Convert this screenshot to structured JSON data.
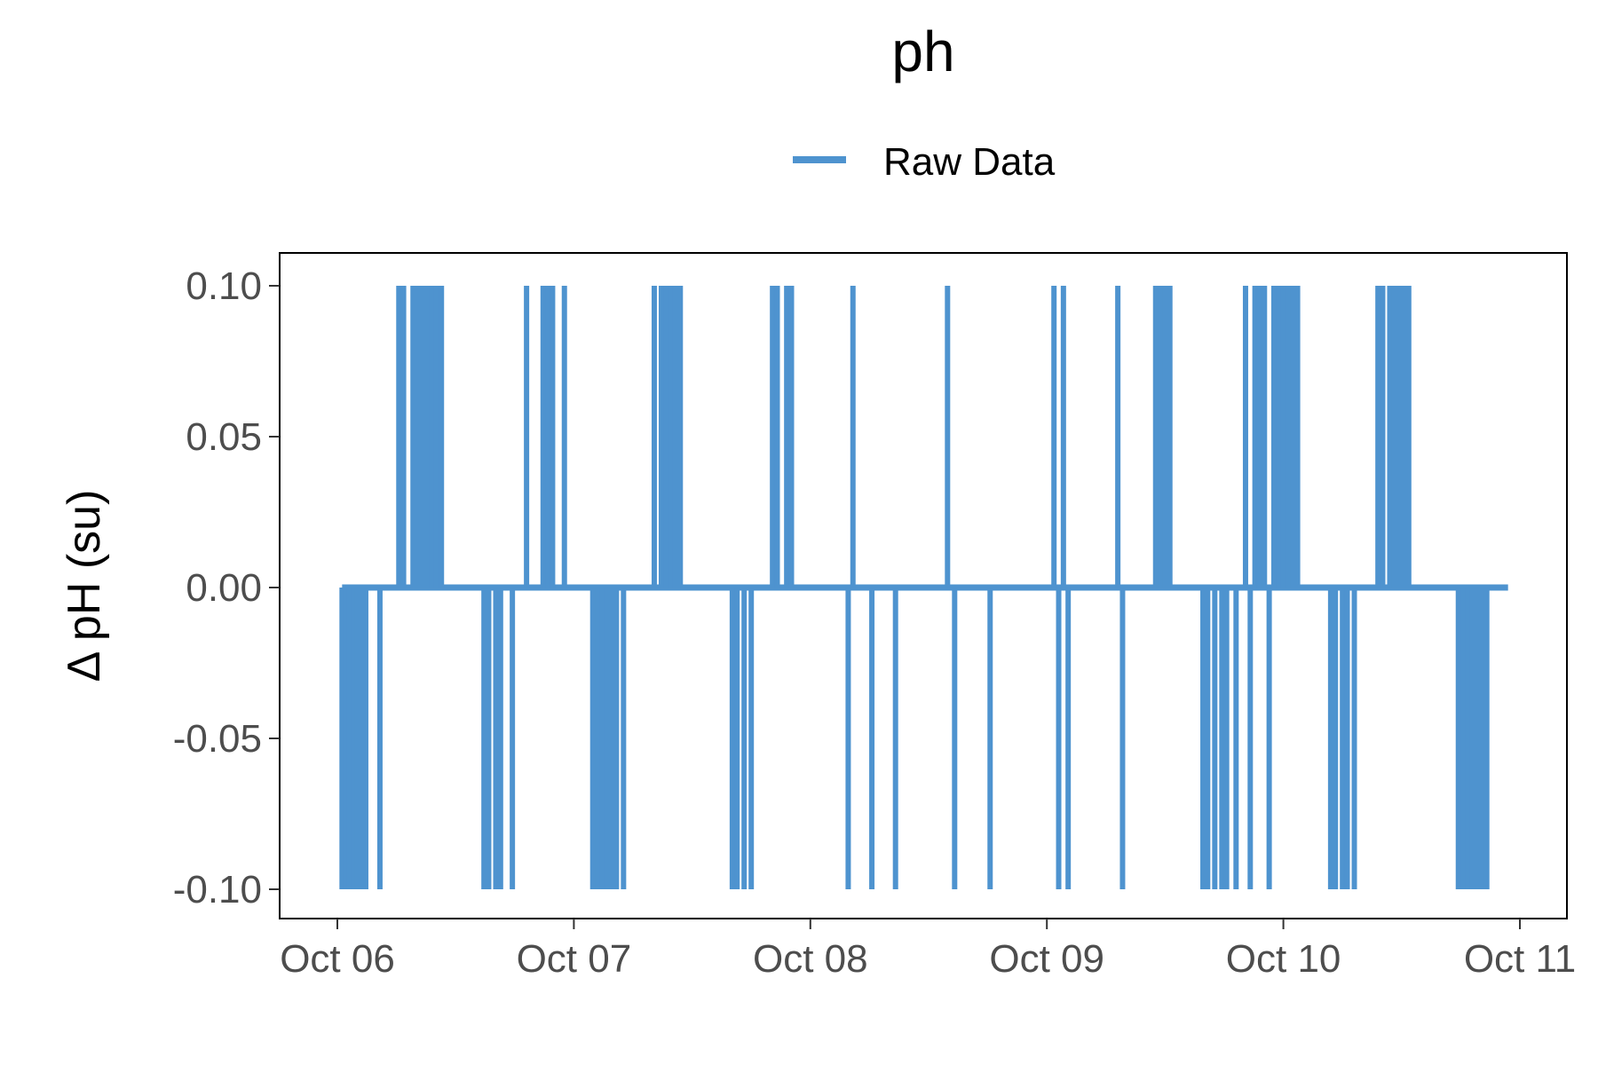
{
  "chart_data": {
    "type": "line",
    "title": "ph",
    "xlabel": "",
    "ylabel": "Δ pH (su)",
    "legend": {
      "position": "top",
      "entries": [
        {
          "name": "Raw Data",
          "color": "#4e93cf"
        }
      ]
    },
    "x_ticks": [
      "Oct 06",
      "Oct 07",
      "Oct 08",
      "Oct 09",
      "Oct 10",
      "Oct 11"
    ],
    "y_ticks": [
      "-0.10",
      "-0.05",
      "0.00",
      "0.05",
      "0.10"
    ],
    "y_tick_values": [
      -0.1,
      -0.05,
      0.0,
      0.05,
      0.1
    ],
    "xlim": [
      5.75,
      11.2
    ],
    "ylim": [
      -0.11,
      0.11
    ],
    "grid": false,
    "series": [
      {
        "name": "Raw Data",
        "color": "#4e93cf",
        "x_unit": "days (October)",
        "x": [
          6.02,
          6.22,
          6.26,
          6.62,
          6.72,
          6.8,
          6.92,
          7.08,
          7.22,
          7.34,
          7.58,
          7.68,
          7.78,
          7.92,
          8.18,
          8.28,
          8.58,
          8.72,
          9.02,
          9.1,
          9.3,
          9.48,
          9.6,
          9.9,
          9.94,
          10.22,
          10.36,
          10.46,
          10.62,
          10.82,
          10.95
        ],
        "values": [
          0.0,
          0.0,
          0.1,
          -0.1,
          0.0,
          0.1,
          0.1,
          -0.1,
          -0.1,
          0.1,
          0.1,
          -0.1,
          0.1,
          0.0,
          -0.1,
          0.1,
          0.0,
          -0.1,
          0.1,
          -0.1,
          0.1,
          0.1,
          -0.1,
          0.1,
          -0.1,
          -0.1,
          0.1,
          0.1,
          0.0,
          -0.1,
          0.0
        ]
      }
    ],
    "spikes": [
      {
        "x": 6.02,
        "v": -0.1
      },
      {
        "x": 6.035,
        "v": -0.1
      },
      {
        "x": 6.05,
        "v": -0.1
      },
      {
        "x": 6.07,
        "v": -0.1
      },
      {
        "x": 6.085,
        "v": -0.1
      },
      {
        "x": 6.1,
        "v": -0.1
      },
      {
        "x": 6.12,
        "v": -0.1
      },
      {
        "x": 6.18,
        "v": -0.1
      },
      {
        "x": 6.26,
        "v": 0.1
      },
      {
        "x": 6.28,
        "v": 0.1
      },
      {
        "x": 6.32,
        "v": 0.1
      },
      {
        "x": 6.34,
        "v": 0.1
      },
      {
        "x": 6.36,
        "v": 0.1
      },
      {
        "x": 6.38,
        "v": 0.1
      },
      {
        "x": 6.4,
        "v": 0.1
      },
      {
        "x": 6.42,
        "v": 0.1
      },
      {
        "x": 6.44,
        "v": 0.1
      },
      {
        "x": 6.62,
        "v": -0.1
      },
      {
        "x": 6.64,
        "v": -0.1
      },
      {
        "x": 6.67,
        "v": -0.1
      },
      {
        "x": 6.69,
        "v": -0.1
      },
      {
        "x": 6.74,
        "v": -0.1
      },
      {
        "x": 6.8,
        "v": 0.1
      },
      {
        "x": 6.87,
        "v": 0.1
      },
      {
        "x": 6.89,
        "v": 0.1
      },
      {
        "x": 6.91,
        "v": 0.1
      },
      {
        "x": 6.96,
        "v": 0.1
      },
      {
        "x": 7.08,
        "v": -0.1
      },
      {
        "x": 7.1,
        "v": -0.1
      },
      {
        "x": 7.12,
        "v": -0.1
      },
      {
        "x": 7.14,
        "v": -0.1
      },
      {
        "x": 7.16,
        "v": -0.1
      },
      {
        "x": 7.18,
        "v": -0.1
      },
      {
        "x": 7.21,
        "v": -0.1
      },
      {
        "x": 7.34,
        "v": 0.1
      },
      {
        "x": 7.37,
        "v": 0.1
      },
      {
        "x": 7.39,
        "v": 0.1
      },
      {
        "x": 7.41,
        "v": 0.1
      },
      {
        "x": 7.43,
        "v": 0.1
      },
      {
        "x": 7.45,
        "v": 0.1
      },
      {
        "x": 7.67,
        "v": -0.1
      },
      {
        "x": 7.69,
        "v": -0.1
      },
      {
        "x": 7.72,
        "v": -0.1
      },
      {
        "x": 7.75,
        "v": -0.1
      },
      {
        "x": 7.84,
        "v": 0.1
      },
      {
        "x": 7.86,
        "v": 0.1
      },
      {
        "x": 7.9,
        "v": 0.1
      },
      {
        "x": 7.92,
        "v": 0.1
      },
      {
        "x": 8.16,
        "v": -0.1
      },
      {
        "x": 8.18,
        "v": 0.1
      },
      {
        "x": 8.26,
        "v": -0.1
      },
      {
        "x": 8.36,
        "v": -0.1
      },
      {
        "x": 8.58,
        "v": 0.1
      },
      {
        "x": 8.61,
        "v": -0.1
      },
      {
        "x": 8.76,
        "v": -0.1
      },
      {
        "x": 9.03,
        "v": 0.1
      },
      {
        "x": 9.05,
        "v": -0.1
      },
      {
        "x": 9.07,
        "v": 0.1
      },
      {
        "x": 9.09,
        "v": -0.1
      },
      {
        "x": 9.3,
        "v": 0.1
      },
      {
        "x": 9.32,
        "v": -0.1
      },
      {
        "x": 9.46,
        "v": 0.1
      },
      {
        "x": 9.48,
        "v": 0.1
      },
      {
        "x": 9.5,
        "v": 0.1
      },
      {
        "x": 9.52,
        "v": 0.1
      },
      {
        "x": 9.66,
        "v": -0.1
      },
      {
        "x": 9.68,
        "v": -0.1
      },
      {
        "x": 9.71,
        "v": -0.1
      },
      {
        "x": 9.74,
        "v": -0.1
      },
      {
        "x": 9.76,
        "v": -0.1
      },
      {
        "x": 9.8,
        "v": -0.1
      },
      {
        "x": 9.84,
        "v": 0.1
      },
      {
        "x": 9.86,
        "v": -0.1
      },
      {
        "x": 9.88,
        "v": 0.1
      },
      {
        "x": 9.9,
        "v": 0.1
      },
      {
        "x": 9.92,
        "v": 0.1
      },
      {
        "x": 9.94,
        "v": -0.1
      },
      {
        "x": 9.96,
        "v": 0.1
      },
      {
        "x": 9.98,
        "v": 0.1
      },
      {
        "x": 10.0,
        "v": 0.1
      },
      {
        "x": 10.02,
        "v": 0.1
      },
      {
        "x": 10.04,
        "v": 0.1
      },
      {
        "x": 10.06,
        "v": 0.1
      },
      {
        "x": 10.2,
        "v": -0.1
      },
      {
        "x": 10.22,
        "v": -0.1
      },
      {
        "x": 10.25,
        "v": -0.1
      },
      {
        "x": 10.27,
        "v": -0.1
      },
      {
        "x": 10.3,
        "v": -0.1
      },
      {
        "x": 10.4,
        "v": 0.1
      },
      {
        "x": 10.42,
        "v": 0.1
      },
      {
        "x": 10.45,
        "v": 0.1
      },
      {
        "x": 10.47,
        "v": 0.1
      },
      {
        "x": 10.49,
        "v": 0.1
      },
      {
        "x": 10.51,
        "v": 0.1
      },
      {
        "x": 10.53,
        "v": 0.1
      },
      {
        "x": 10.74,
        "v": -0.1
      },
      {
        "x": 10.76,
        "v": -0.1
      },
      {
        "x": 10.78,
        "v": -0.1
      },
      {
        "x": 10.8,
        "v": -0.1
      },
      {
        "x": 10.82,
        "v": -0.1
      },
      {
        "x": 10.84,
        "v": -0.1
      },
      {
        "x": 10.86,
        "v": -0.1
      }
    ],
    "baseline_range": [
      6.02,
      10.95
    ]
  }
}
